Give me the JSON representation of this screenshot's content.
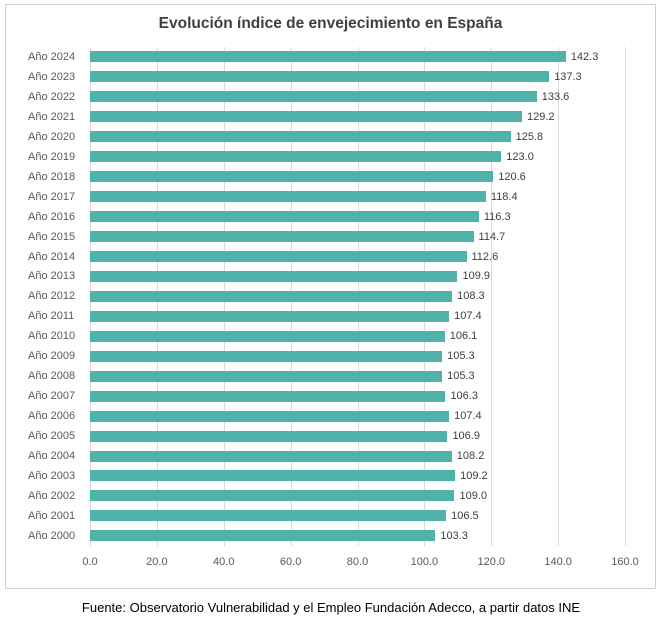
{
  "chart_data": {
    "type": "bar",
    "orientation": "horizontal",
    "title": "Evolución índice de envejecimiento en España",
    "categories": [
      "Año 2024",
      "Año 2023",
      "Año 2022",
      "Año 2021",
      "Año 2020",
      "Año 2019",
      "Año 2018",
      "Año 2017",
      "Año 2016",
      "Año 2015",
      "Año 2014",
      "Año 2013",
      "Año 2012",
      "Año 2011",
      "Año 2010",
      "Año 2009",
      "Año 2008",
      "Año 2007",
      "Año 2006",
      "Año 2005",
      "Año 2004",
      "Año 2003",
      "Año 2002",
      "Año 2001",
      "Año 2000"
    ],
    "values": [
      142.3,
      137.3,
      133.6,
      129.2,
      125.8,
      123.0,
      120.6,
      118.4,
      116.3,
      114.7,
      112.6,
      109.9,
      108.3,
      107.4,
      106.1,
      105.3,
      105.3,
      106.3,
      107.4,
      106.9,
      108.2,
      109.2,
      109.0,
      106.5,
      103.3
    ],
    "xlim": [
      0,
      160
    ],
    "x_ticks": [
      "0.0",
      "20.0",
      "40.0",
      "60.0",
      "80.0",
      "100.0",
      "120.0",
      "140.0",
      "160.0"
    ],
    "grid": true,
    "legend": "none",
    "bar_color": "#4FB3A9"
  },
  "footer": {
    "source": "Fuente: Observatorio Vulnerabilidad y el Empleo Fundación Adecco, a partir datos INE"
  }
}
